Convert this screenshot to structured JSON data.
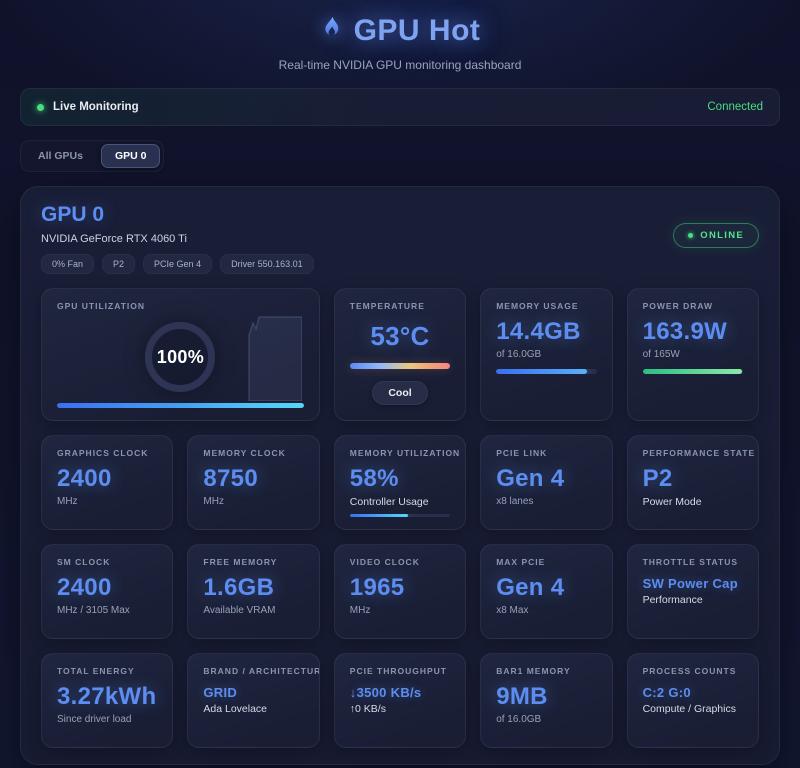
{
  "header": {
    "title": "GPU Hot",
    "subtitle": "Real-time NVIDIA GPU monitoring dashboard"
  },
  "status_bar": {
    "live_label": "Live Monitoring",
    "connection_status": "Connected"
  },
  "tabs": [
    {
      "label": "All GPUs",
      "active": false
    },
    {
      "label": "GPU 0",
      "active": true
    }
  ],
  "colors": {
    "accent_blue": "#5d8df0",
    "success_green": "#4ade80",
    "bar_blue_gradient": [
      "#3a6ff0",
      "#55d7f8"
    ],
    "bar_green_gradient": [
      "#2ebd82",
      "#8ce8a9"
    ],
    "temp_gradient": [
      "#5b8bf5",
      "#e9c87e",
      "#f88585"
    ]
  },
  "gpu_card": {
    "title": "GPU 0",
    "gpu_name": "NVIDIA GeForce RTX 4060 Ti",
    "badges": [
      "0% Fan",
      "P2",
      "PCIe Gen 4",
      "Driver 550.163.01"
    ],
    "online_status": "ONLINE",
    "metrics": {
      "gpu_utilization": {
        "label": "GPU UTILIZATION",
        "value": "100%",
        "percent": 100
      },
      "temperature": {
        "label": "TEMPERATURE",
        "value": "53°C",
        "status": "Cool"
      },
      "memory_usage": {
        "label": "MEMORY USAGE",
        "value": "14.4GB",
        "sub": "of 16.0GB",
        "percent": 90
      },
      "power_draw": {
        "label": "POWER DRAW",
        "value": "163.9W",
        "sub": "of 165W",
        "percent": 99
      },
      "graphics_clock": {
        "label": "GRAPHICS CLOCK",
        "value": "2400",
        "sub": "MHz"
      },
      "memory_clock": {
        "label": "MEMORY CLOCK",
        "value": "8750",
        "sub": "MHz"
      },
      "memory_utilization": {
        "label": "MEMORY UTILIZATION",
        "value": "58%",
        "sub": "Controller Usage",
        "percent": 58
      },
      "pcie_link": {
        "label": "PCIE LINK",
        "value": "Gen 4",
        "sub": "x8 lanes"
      },
      "performance_state": {
        "label": "PERFORMANCE STATE",
        "value": "P2",
        "sub": "Power Mode"
      },
      "sm_clock": {
        "label": "SM CLOCK",
        "value": "2400",
        "sub": "MHz / 3105 Max"
      },
      "free_memory": {
        "label": "FREE MEMORY",
        "value": "1.6GB",
        "sub": "Available VRAM"
      },
      "video_clock": {
        "label": "VIDEO CLOCK",
        "value": "1965",
        "sub": "MHz"
      },
      "max_pcie": {
        "label": "MAX PCIE",
        "value": "Gen 4",
        "sub": "x8 Max"
      },
      "throttle_status": {
        "label": "THROTTLE STATUS",
        "value": "SW Power Cap",
        "sub": "Performance"
      },
      "total_energy": {
        "label": "TOTAL ENERGY",
        "value": "3.27kWh",
        "sub": "Since driver load"
      },
      "brand_architecture": {
        "label": "BRAND / ARCHITECTURE",
        "value": "GRID",
        "sub": "Ada Lovelace"
      },
      "pcie_throughput": {
        "label": "PCIE THROUGHPUT",
        "value": "↓3500 KB/s",
        "sub": "↑0 KB/s"
      },
      "bar1_memory": {
        "label": "BAR1 MEMORY",
        "value": "9MB",
        "sub": "of 16.0GB"
      },
      "process_counts": {
        "label": "PROCESS COUNTS",
        "value": "C:2 G:0",
        "sub": "Compute / Graphics"
      }
    }
  }
}
